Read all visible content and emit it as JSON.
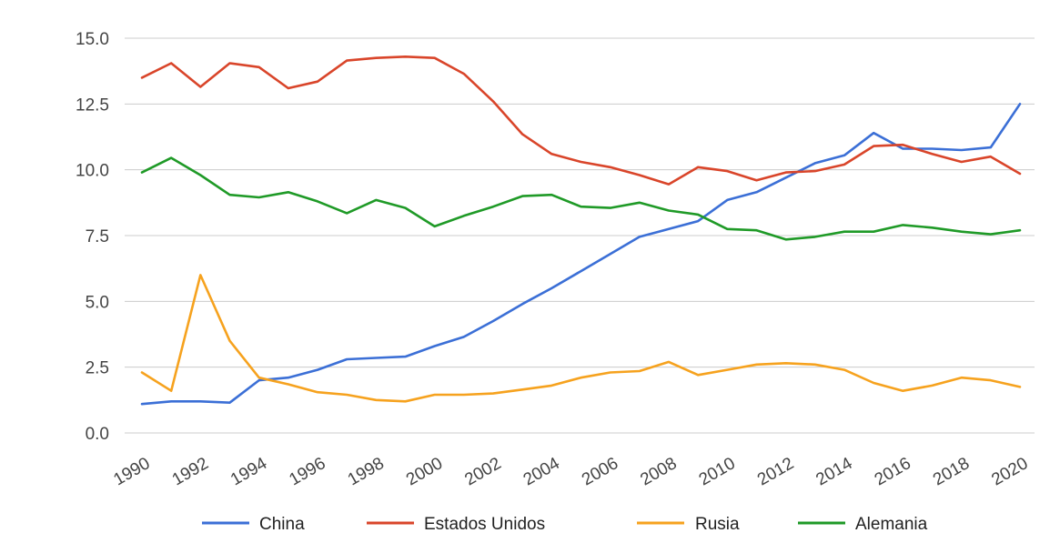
{
  "chart_data": {
    "type": "line",
    "title": "",
    "xlabel": "",
    "ylabel": "",
    "x": [
      1990,
      1991,
      1992,
      1993,
      1994,
      1995,
      1996,
      1997,
      1998,
      1999,
      2000,
      2001,
      2002,
      2003,
      2004,
      2005,
      2006,
      2007,
      2008,
      2009,
      2010,
      2011,
      2012,
      2013,
      2014,
      2015,
      2016,
      2017,
      2018,
      2019,
      2020
    ],
    "x_tick_labels": [
      "1990",
      "1992",
      "1994",
      "1996",
      "1998",
      "2000",
      "2002",
      "2004",
      "2006",
      "2008",
      "2010",
      "2012",
      "2014",
      "2016",
      "2018",
      "2020"
    ],
    "y_tick_labels": [
      "0.0",
      "2.5",
      "5.0",
      "7.5",
      "10.0",
      "12.5",
      "15.0"
    ],
    "ylim": [
      0,
      15
    ],
    "grid": true,
    "legend_position": "bottom",
    "series": [
      {
        "name": "China",
        "color": "#3b6fd6",
        "values": [
          1.1,
          1.2,
          1.2,
          1.15,
          2.0,
          2.1,
          2.4,
          2.8,
          2.85,
          2.9,
          3.3,
          3.65,
          4.25,
          4.9,
          5.5,
          6.15,
          6.8,
          7.45,
          7.75,
          8.05,
          8.85,
          9.15,
          9.7,
          10.25,
          10.55,
          11.4,
          10.8,
          10.8,
          10.75,
          10.85,
          12.5
        ]
      },
      {
        "name": "Estados Unidos",
        "color": "#d9452a",
        "values": [
          13.5,
          14.05,
          13.15,
          14.05,
          13.9,
          13.1,
          13.35,
          14.15,
          14.25,
          14.3,
          14.25,
          13.65,
          12.6,
          11.35,
          10.6,
          10.3,
          10.1,
          9.8,
          9.45,
          10.1,
          9.95,
          9.6,
          9.9,
          9.95,
          10.2,
          10.9,
          10.95,
          10.6,
          10.3,
          10.5,
          9.85
        ]
      },
      {
        "name": "Rusia",
        "color": "#f6a21e",
        "values": [
          2.3,
          1.6,
          6.0,
          3.5,
          2.1,
          1.85,
          1.55,
          1.45,
          1.25,
          1.2,
          1.45,
          1.45,
          1.5,
          1.65,
          1.8,
          2.1,
          2.3,
          2.35,
          2.7,
          2.2,
          2.4,
          2.6,
          2.65,
          2.6,
          2.4,
          1.9,
          1.6,
          1.8,
          2.1,
          2.0,
          1.75
        ]
      },
      {
        "name": "Alemania",
        "color": "#1f9a27",
        "values": [
          9.9,
          10.45,
          9.8,
          9.05,
          8.95,
          9.15,
          8.8,
          8.35,
          8.85,
          8.55,
          7.85,
          8.25,
          8.6,
          9.0,
          9.05,
          8.6,
          8.55,
          8.75,
          8.45,
          8.3,
          7.75,
          7.7,
          7.35,
          7.45,
          7.65,
          7.65,
          7.9,
          7.8,
          7.65,
          7.55,
          7.7
        ]
      }
    ]
  }
}
